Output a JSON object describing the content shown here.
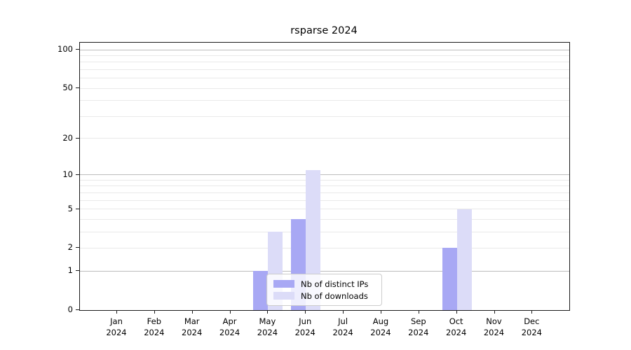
{
  "chart_data": {
    "type": "bar",
    "title": "rsparse 2024",
    "categories": [
      "Jan",
      "Feb",
      "Mar",
      "Apr",
      "May",
      "Jun",
      "Jul",
      "Aug",
      "Sep",
      "Oct",
      "Nov",
      "Dec"
    ],
    "x_tick_year": "2024",
    "series": [
      {
        "name": "Nb of distinct IPs",
        "color": "#a8a8f4",
        "values": [
          0,
          0,
          0,
          0,
          1,
          4,
          0,
          0,
          0,
          2,
          0,
          0
        ]
      },
      {
        "name": "Nb of downloads",
        "color": "#dcdcf8",
        "values": [
          0,
          0,
          0,
          0,
          3,
          11,
          0,
          0,
          0,
          5,
          0,
          0
        ]
      }
    ],
    "y_axis": {
      "scale": "log1p",
      "tick_labels": [
        "0",
        "1",
        "2",
        "5",
        "10",
        "20",
        "50",
        "100"
      ],
      "tick_values": [
        0,
        1,
        2,
        5,
        10,
        20,
        50,
        100
      ],
      "major_gridlines": [
        1,
        10,
        100
      ],
      "minor_gridlines": [
        2,
        3,
        4,
        5,
        6,
        7,
        8,
        9,
        20,
        30,
        40,
        50,
        60,
        70,
        80,
        90
      ],
      "ylim": [
        0,
        113
      ]
    },
    "xlabel": "",
    "ylabel": "",
    "grid": true,
    "legend_position": "lower-center-inside"
  }
}
